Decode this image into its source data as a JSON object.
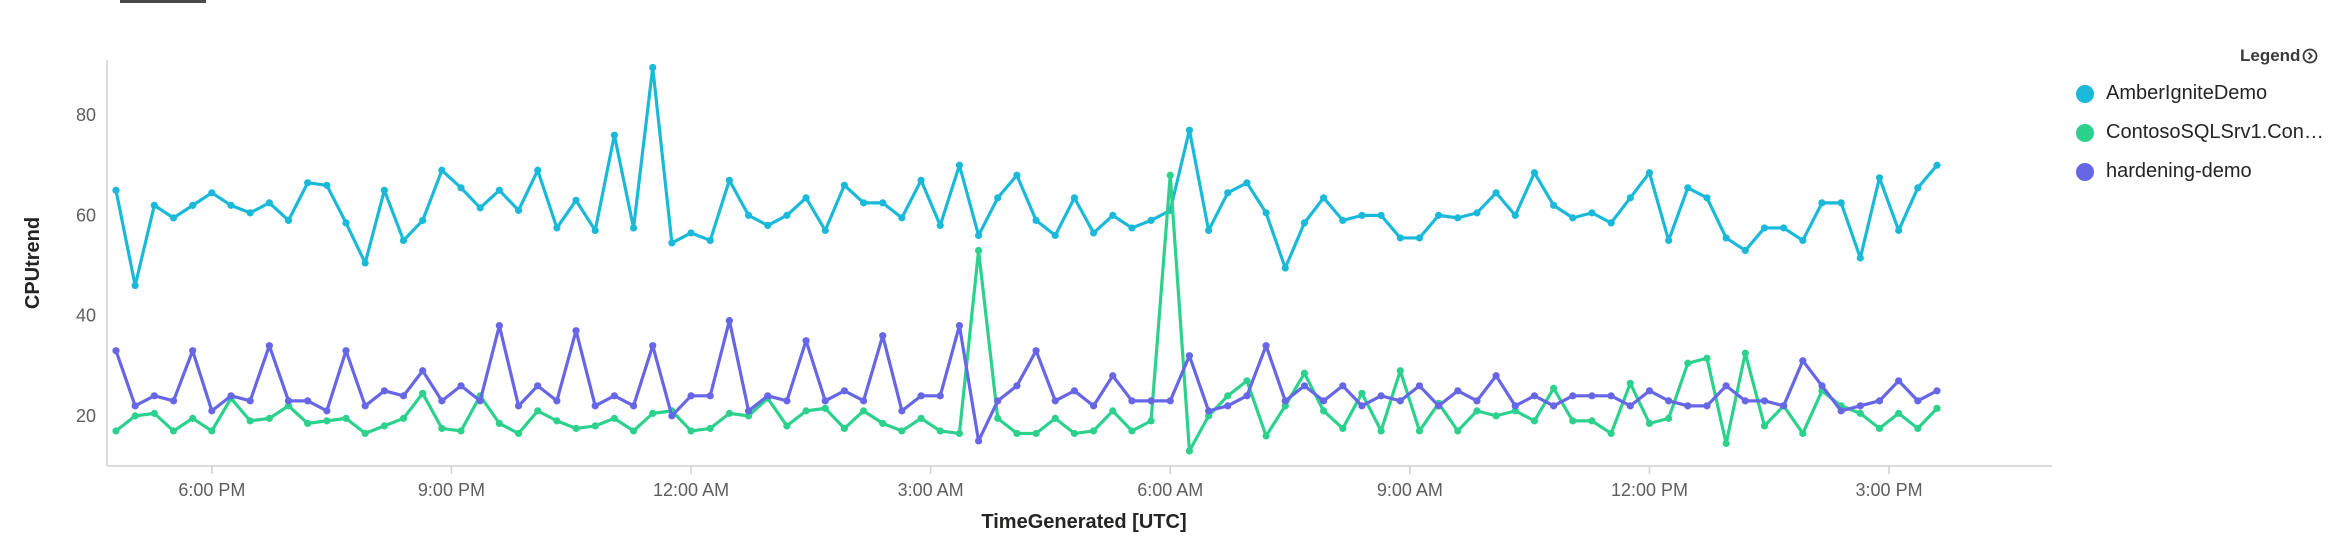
{
  "legend": {
    "title": "Legend",
    "toggle_icon": "chevron-circle-icon"
  },
  "chart_data": {
    "type": "line",
    "title": "",
    "xlabel": "TimeGenerated [UTC]",
    "ylabel": "CPUtrend",
    "xlim": [
      0,
      101
    ],
    "ylim": [
      10,
      91
    ],
    "yticks": [
      20,
      40,
      60,
      80
    ],
    "xticks": [
      {
        "x": 5,
        "label": "6:00 PM"
      },
      {
        "x": 17.5,
        "label": "9:00 PM"
      },
      {
        "x": 30,
        "label": "12:00 AM"
      },
      {
        "x": 42.5,
        "label": "3:00 AM"
      },
      {
        "x": 55,
        "label": "6:00 AM"
      },
      {
        "x": 67.5,
        "label": "9:00 AM"
      },
      {
        "x": 80,
        "label": "12:00 PM"
      },
      {
        "x": 92.5,
        "label": "3:00 PM"
      }
    ],
    "grid": false,
    "legend_position": "right",
    "series": [
      {
        "name": "AmberIgniteDemo",
        "color": "#1ab9d9",
        "values": [
          65,
          46,
          62,
          59.5,
          62,
          64.5,
          62,
          60.5,
          62.5,
          59,
          66.5,
          66,
          58.5,
          50.5,
          65,
          55,
          59,
          69,
          65.5,
          61.5,
          65,
          61,
          69,
          57.5,
          63,
          57,
          76,
          57.5,
          89.5,
          54.5,
          56.5,
          55,
          67,
          60,
          58,
          60,
          63.5,
          57,
          66,
          62.5,
          62.5,
          59.5,
          67,
          58,
          70,
          56,
          63.5,
          68,
          59,
          56,
          63.5,
          56.5,
          60,
          57.5,
          59,
          61,
          77,
          57,
          64.5,
          66.5,
          60.5,
          49.5,
          58.5,
          63.5,
          59,
          60,
          60,
          55.5,
          55.5,
          60,
          59.5,
          60.5,
          64.5,
          60,
          68.5,
          62,
          59.5,
          60.5,
          58.5,
          63.5,
          68.5,
          55,
          65.5,
          63.5,
          55.5,
          53,
          57.5,
          57.5,
          55,
          62.5,
          62.5,
          51.5,
          67.5,
          57,
          65.5,
          70
        ]
      },
      {
        "name": "ContosoSQLSrv1.Conto...",
        "color": "#2bd18c",
        "values": [
          17,
          20,
          20.5,
          17,
          19.5,
          17,
          23.5,
          19,
          19.5,
          22,
          18.5,
          19,
          19.5,
          16.5,
          18,
          19.5,
          24.5,
          17.5,
          17,
          24,
          18.5,
          16.5,
          21,
          19,
          17.5,
          18,
          19.5,
          17,
          20.5,
          21,
          17,
          17.5,
          20.5,
          20,
          23.5,
          18,
          21,
          21.5,
          17.5,
          21,
          18.5,
          17,
          19.5,
          17,
          16.5,
          53,
          19.5,
          16.5,
          16.5,
          19.5,
          16.5,
          17,
          21,
          17,
          19,
          68,
          13,
          20,
          24,
          27,
          16,
          22,
          28.5,
          21,
          17.5,
          24.5,
          17,
          29,
          17,
          22.5,
          17,
          21,
          20,
          21,
          19,
          25.5,
          19,
          19,
          16.5,
          26.5,
          18.5,
          19.5,
          30.5,
          31.5,
          14.5,
          32.5,
          18,
          22,
          16.5,
          25,
          22,
          20.5,
          17.5,
          20.5,
          17.5,
          21.5
        ]
      },
      {
        "name": "hardening-demo",
        "color": "#6666e6",
        "values": [
          33,
          22,
          24,
          23,
          33,
          21,
          24,
          23,
          34,
          23,
          23,
          21,
          33,
          22,
          25,
          24,
          29,
          23,
          26,
          23,
          38,
          22,
          26,
          23,
          37,
          22,
          24,
          22,
          34,
          20,
          24,
          24,
          39,
          21,
          24,
          23,
          35,
          23,
          25,
          23,
          36,
          21,
          24,
          24,
          38,
          15,
          23,
          26,
          33,
          23,
          25,
          22,
          28,
          23,
          23,
          23,
          32,
          21,
          22,
          24,
          34,
          23,
          26,
          23,
          26,
          22,
          24,
          23,
          26,
          22,
          25,
          23,
          28,
          22,
          24,
          22,
          24,
          24,
          24,
          22,
          25,
          23,
          22,
          22,
          26,
          23,
          23,
          22,
          31,
          26,
          21,
          22,
          23,
          27,
          23,
          25
        ]
      }
    ]
  }
}
